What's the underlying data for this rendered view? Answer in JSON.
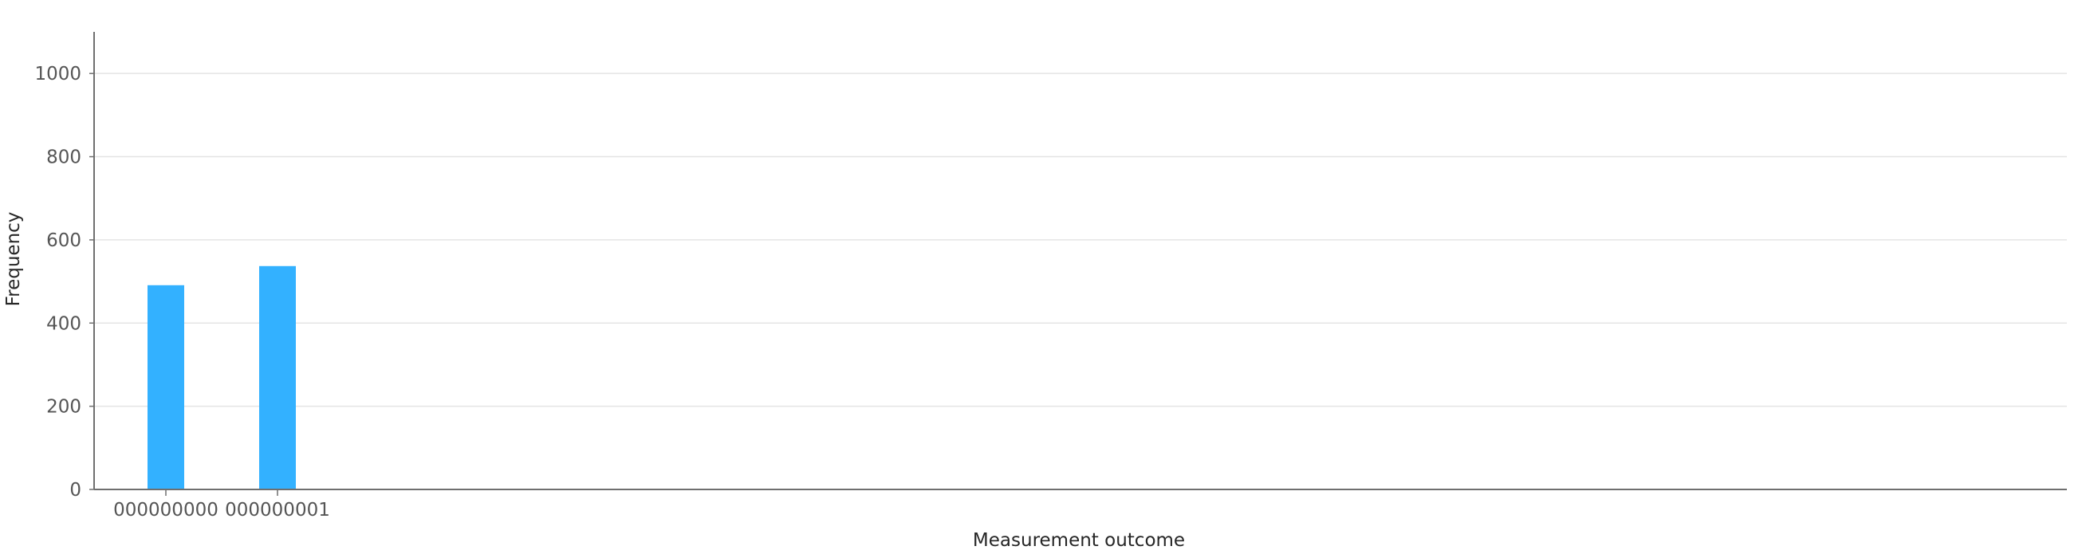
{
  "chart_data": {
    "type": "bar",
    "categories": [
      "000000000",
      "000000001"
    ],
    "values": [
      491,
      537
    ],
    "xlabel": "Measurement outcome",
    "ylabel": "Frequency",
    "ylim": [
      0,
      1100
    ],
    "yticks": [
      0,
      200,
      400,
      600,
      800,
      1000
    ],
    "grid": true,
    "bar_color": "#33b1ff",
    "grid_color": "#e4e4e4",
    "axis_color": "#6f6f6f"
  }
}
